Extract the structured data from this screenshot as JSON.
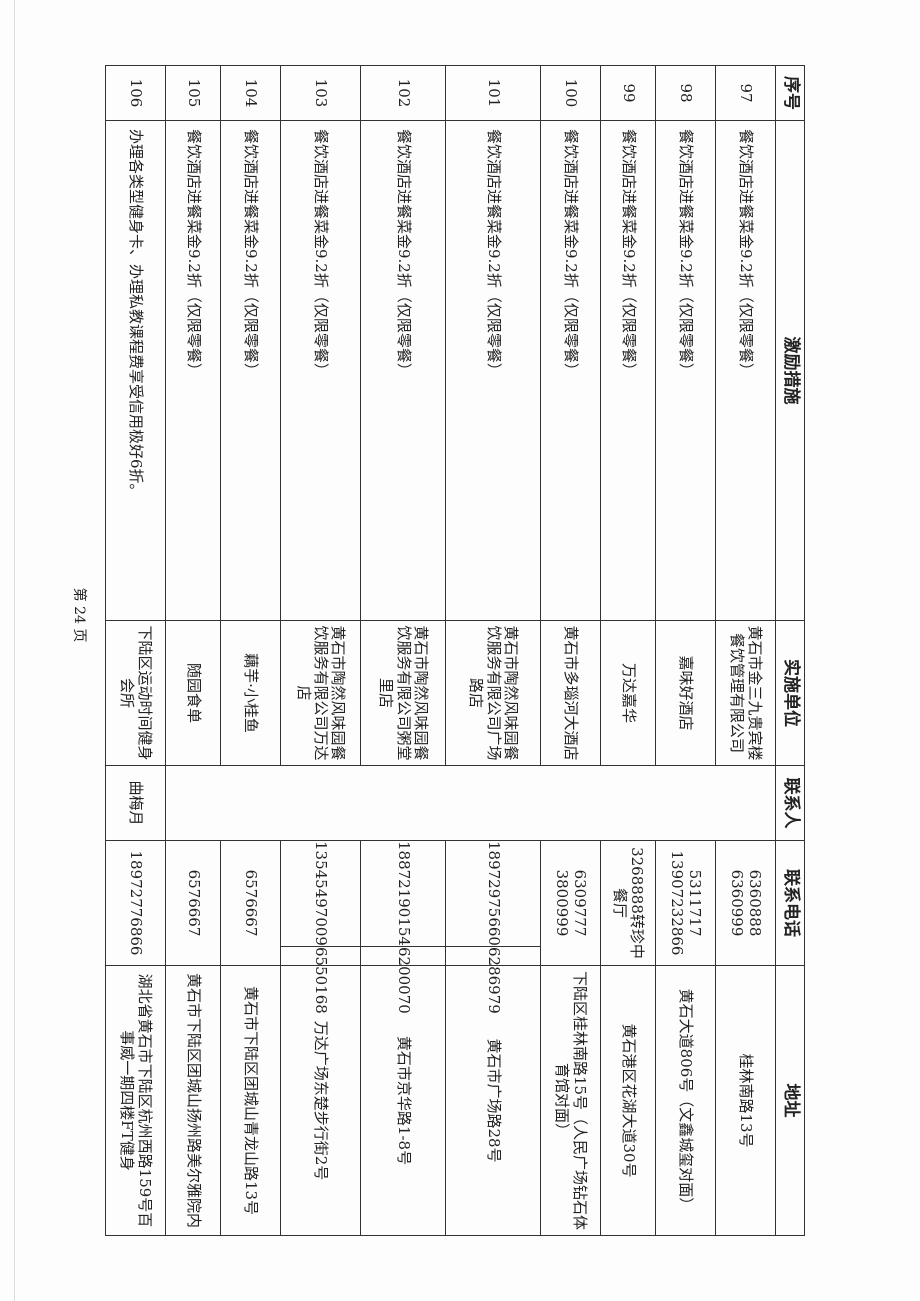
{
  "table": {
    "headers": [
      "序号",
      "激励措施",
      "实施单位",
      "联系人",
      "联系电话",
      "地址"
    ],
    "rows": [
      {
        "no": "97",
        "measure": "餐饮酒店进餐菜金9.2折（仅限零餐）",
        "unit": "黄石市金三九贵宾楼餐饮管理有限公司",
        "contact": "",
        "phone": "6360888 6360999",
        "address": "桂林南路13号"
      },
      {
        "no": "98",
        "measure": "餐饮酒店进餐菜金9.2折（仅限零餐）",
        "unit": "嘉味好酒店",
        "contact": "",
        "phone": "5311717 13907232866",
        "address": "黄石大道806号（文鑫城玺对面）"
      },
      {
        "no": "99",
        "measure": "餐饮酒店进餐菜金9.2折（仅限零餐）",
        "unit": "万达嘉华",
        "contact": "",
        "phone": "3268888转珍中餐厅",
        "address": "黄石港区花湖大道30号"
      },
      {
        "no": "100",
        "measure": "餐饮酒店进餐菜金9.2折（仅限零餐）",
        "unit": "黄石市多瑙河大酒店",
        "contact": "",
        "phone": "6309777 3800999",
        "address": "下陆区桂林南路15号（人民广场钻石体育馆对面）"
      },
      {
        "no": "101",
        "measure": "餐饮酒店进餐菜金9.2折（仅限零餐）",
        "unit": "黄石市陶然风味园餐饮服务有限公司广场路店",
        "contact": "",
        "phone_mobile": "18972975660",
        "phone_land": "6286979",
        "address": "黄石市广场路28号"
      },
      {
        "no": "102",
        "measure": "餐饮酒店进餐菜金9.2折（仅限零餐）",
        "unit": "黄石市陶然风味园餐饮服务有限公司粥堂里店",
        "contact": "",
        "phone_mobile": "18872190154",
        "phone_land": "6200070",
        "address": "黄石市京华路1-8号"
      },
      {
        "no": "103",
        "measure": "餐饮酒店进餐菜金9.2折（仅限零餐）",
        "unit": "黄石市陶然风味园餐饮服务有限公司万达店",
        "contact": "",
        "phone_mobile": "13545497009",
        "phone_land": "6550168",
        "address": "万达广场东楚步行街2号"
      },
      {
        "no": "104",
        "measure": "餐饮酒店进餐菜金9.2折（仅限零餐）",
        "unit": "藕芋·小桂鱼",
        "contact": "",
        "phone": "6576667",
        "address": "黄石市下陆区团城山青龙山路13号"
      },
      {
        "no": "105",
        "measure": "餐饮酒店进餐菜金9.2折（仅限零餐）",
        "unit": "随园食单",
        "contact": "",
        "phone": "6576667",
        "address": "黄石市下陆区团城山扬州路美尔雅院内"
      },
      {
        "no": "106",
        "measure": "办理各类型健身卡、办理私教课程费享受信用极好6折。",
        "unit": "下陆区运动时间健身会所",
        "contact": "曲梅月",
        "phone": "18972776866",
        "address": "湖北省黄石市下陆区杭州西路159号百事威一期四楼FT健身"
      }
    ]
  },
  "footer": {
    "page": "第 24 页"
  }
}
